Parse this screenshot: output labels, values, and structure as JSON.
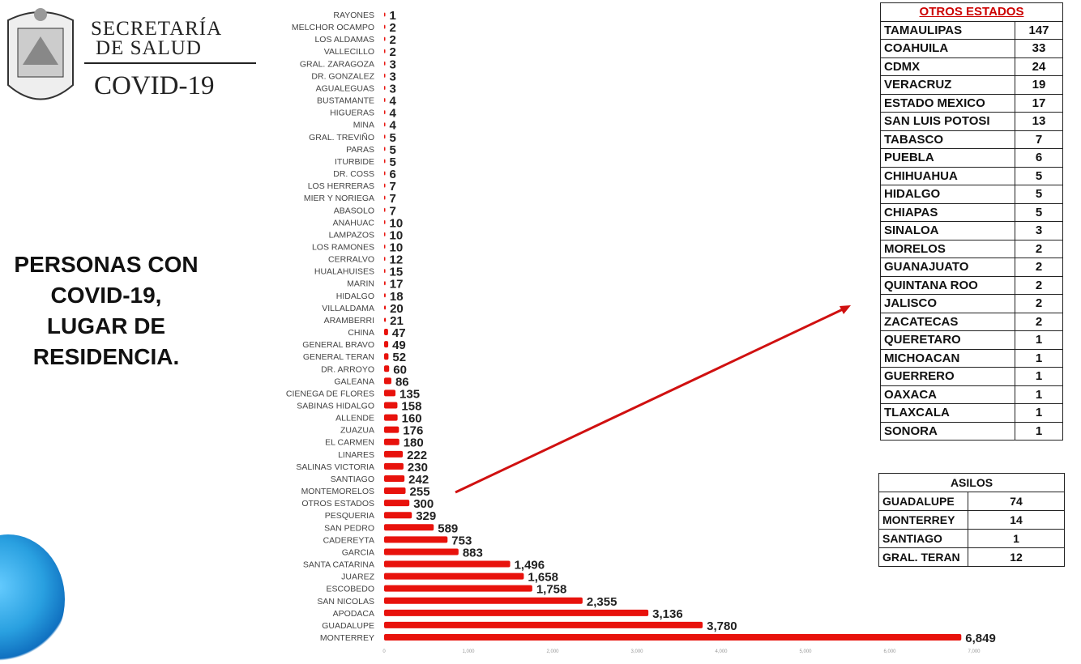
{
  "header": {
    "org_line1": "SECRETARÍA",
    "org_line2": "DE SALUD",
    "subtitle": "COVID-19"
  },
  "slide_title": [
    "PERSONAS CON",
    "COVID-19,",
    "LUGAR DE",
    "RESIDENCIA."
  ],
  "chart_data": {
    "type": "bar",
    "orientation": "horizontal",
    "title": "PERSONAS CON COVID-19, LUGAR DE RESIDENCIA.",
    "categories": [
      "RAYONES",
      "MELCHOR OCAMPO",
      "LOS ALDAMAS",
      "VALLECILLO",
      "GRAL. ZARAGOZA",
      "DR. GONZALEZ",
      "AGUALEGUAS",
      "BUSTAMANTE",
      "HIGUERAS",
      "MINA",
      "GRAL. TREVIÑO",
      "PARAS",
      "ITURBIDE",
      "DR. COSS",
      "LOS HERRERAS",
      "MIER Y NORIEGA",
      "ABASOLO",
      "ANAHUAC",
      "LAMPAZOS",
      "LOS RAMONES",
      "CERRALVO",
      "HUALAHUISES",
      "MARIN",
      "HIDALGO",
      "VILLALDAMA",
      "ARAMBERRI",
      "CHINA",
      "GENERAL BRAVO",
      "GENERAL TERAN",
      "DR. ARROYO",
      "GALEANA",
      "CIENEGA DE FLORES",
      "SABINAS HIDALGO",
      "ALLENDE",
      "ZUAZUA",
      "EL CARMEN",
      "LINARES",
      "SALINAS VICTORIA",
      "SANTIAGO",
      "MONTEMORELOS",
      "OTROS ESTADOS",
      "PESQUERIA",
      "SAN PEDRO",
      "CADEREYTA",
      "GARCIA",
      "SANTA CATARINA",
      "JUAREZ",
      "ESCOBEDO",
      "SAN NICOLAS",
      "APODACA",
      "GUADALUPE",
      "MONTERREY"
    ],
    "values": [
      1,
      2,
      2,
      2,
      3,
      3,
      3,
      4,
      4,
      4,
      5,
      5,
      5,
      6,
      7,
      7,
      7,
      10,
      10,
      10,
      12,
      15,
      17,
      18,
      20,
      21,
      47,
      49,
      52,
      60,
      86,
      135,
      158,
      160,
      176,
      180,
      222,
      230,
      242,
      255,
      300,
      329,
      589,
      753,
      883,
      1496,
      1658,
      1758,
      2355,
      3136,
      3780,
      6849
    ],
    "xlim": [
      0,
      7000
    ],
    "xticks": [
      "0",
      "1,000",
      "2,000",
      "3,000",
      "4,000",
      "5,000",
      "6,000",
      "7,000"
    ],
    "bar_color": "#e8120c"
  },
  "otros_estados": {
    "title": "OTROS ESTADOS",
    "rows": [
      [
        "TAMAULIPAS",
        "147"
      ],
      [
        "COAHUILA",
        "33"
      ],
      [
        "CDMX",
        "24"
      ],
      [
        "VERACRUZ",
        "19"
      ],
      [
        "ESTADO MEXICO",
        "17"
      ],
      [
        "SAN LUIS POTOSI",
        "13"
      ],
      [
        "TABASCO",
        "7"
      ],
      [
        "PUEBLA",
        "6"
      ],
      [
        "CHIHUAHUA",
        "5"
      ],
      [
        "HIDALGO",
        "5"
      ],
      [
        "CHIAPAS",
        "5"
      ],
      [
        "SINALOA",
        "3"
      ],
      [
        "MORELOS",
        "2"
      ],
      [
        "GUANAJUATO",
        "2"
      ],
      [
        "QUINTANA ROO",
        "2"
      ],
      [
        "JALISCO",
        "2"
      ],
      [
        "ZACATECAS",
        "2"
      ],
      [
        "QUERETARO",
        "1"
      ],
      [
        "MICHOACAN",
        "1"
      ],
      [
        "GUERRERO",
        "1"
      ],
      [
        "OAXACA",
        "1"
      ],
      [
        "TLAXCALA",
        "1"
      ],
      [
        "SONORA",
        "1"
      ]
    ]
  },
  "asilos": {
    "title": "ASILOS",
    "rows": [
      [
        "GUADALUPE",
        "74"
      ],
      [
        "MONTERREY",
        "14"
      ],
      [
        "SANTIAGO",
        "1"
      ],
      [
        "GRAL. TERAN",
        "12"
      ]
    ]
  }
}
